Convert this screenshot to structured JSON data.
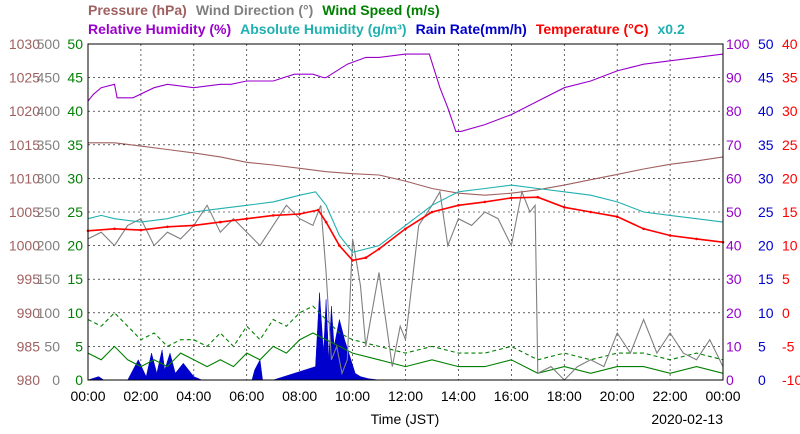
{
  "colors": {
    "pressure": "#a06060",
    "wind_direction": "#808080",
    "wind_speed": "#008000",
    "humidity": "#9900cc",
    "abs_humidity": "#20b0b0",
    "rain": "#0000cc",
    "temperature": "#ff0000",
    "grid": "#000000"
  },
  "chart_data": {
    "type": "line",
    "date": "2020-02-13",
    "xlabel": "Time (JST)",
    "xlim": [
      0,
      24
    ],
    "x_ticks": [
      "00:00",
      "02:00",
      "04:00",
      "06:00",
      "08:00",
      "10:00",
      "12:00",
      "14:00",
      "16:00",
      "18:00",
      "20:00",
      "22:00",
      "00:00"
    ],
    "grid": true,
    "legend": {
      "row1": [
        {
          "key": "pressure",
          "label": "Pressure (hPa)"
        },
        {
          "key": "wind_direction",
          "label": "Wind Direction (°)"
        },
        {
          "key": "wind_speed",
          "label": "Wind Speed (m/s)"
        }
      ],
      "row2": [
        {
          "key": "humidity",
          "label": "Relative Humidity (%)"
        },
        {
          "key": "abs_humidity",
          "label": "Absolute Humidity (g/m³)"
        },
        {
          "key": "rain",
          "label": "Rain Rate(mm/h)"
        },
        {
          "key": "temperature",
          "label": "Temperature (°C)"
        },
        {
          "key": "abs_humidity",
          "label": "x0.2"
        }
      ]
    },
    "axes": {
      "pressure": {
        "ylim": [
          980,
          1030
        ],
        "ticks": [
          "1030",
          "1025",
          "1020",
          "1015",
          "1010",
          "1005",
          "1000",
          "995",
          "990",
          "985",
          "980"
        ]
      },
      "wind_direction": {
        "ylim": [
          0,
          500
        ],
        "ticks": [
          "500",
          "450",
          "400",
          "350",
          "300",
          "250",
          "200",
          "150",
          "100",
          "50",
          "0"
        ]
      },
      "wind_speed": {
        "ylim": [
          0,
          50
        ],
        "ticks": [
          "50",
          "45",
          "40",
          "35",
          "30",
          "25",
          "20",
          "15",
          "10",
          "5",
          "0"
        ]
      },
      "humidity": {
        "ylim": [
          0,
          100
        ],
        "ticks": [
          "100",
          "90",
          "80",
          "70",
          "60",
          "50",
          "40",
          "30",
          "20",
          "10",
          "0"
        ]
      },
      "rain": {
        "ylim": [
          0,
          50
        ],
        "ticks": [
          "50",
          "45",
          "40",
          "35",
          "30",
          "25",
          "20",
          "15",
          "10",
          "5",
          "0"
        ]
      },
      "temperature": {
        "ylim": [
          -10,
          40
        ],
        "ticks": [
          "40",
          "35",
          "30",
          "25",
          "20",
          "15",
          "10",
          "5",
          "0",
          "-5",
          "-10"
        ]
      }
    },
    "series": [
      {
        "key": "pressure",
        "axis": "pressure",
        "x": [
          0,
          1,
          2,
          3,
          4,
          5,
          6,
          7,
          8,
          9,
          10,
          11,
          12,
          13,
          14,
          15,
          16,
          17,
          18,
          19,
          20,
          21,
          22,
          23,
          24
        ],
        "y": [
          1015.3,
          1015.3,
          1014.8,
          1014.3,
          1013.8,
          1013.2,
          1012.4,
          1012.0,
          1011.5,
          1011.0,
          1010.7,
          1010.5,
          1009.6,
          1008.5,
          1007.8,
          1007.5,
          1007.8,
          1008.3,
          1009.0,
          1009.8,
          1010.6,
          1011.4,
          1012.1,
          1012.6,
          1013.2
        ]
      },
      {
        "key": "humidity",
        "axis": "humidity",
        "x": [
          0,
          0.2,
          0.5,
          1,
          1.1,
          1.7,
          2.5,
          3,
          4,
          5,
          5.4,
          6,
          7,
          7.8,
          8.5,
          8.9,
          9,
          9.8,
          10.5,
          11,
          12,
          12.9,
          13.3,
          13.6,
          13.9,
          14.1,
          15,
          16,
          17,
          18,
          19,
          20,
          21,
          22,
          23,
          24
        ],
        "y": [
          83,
          85,
          87,
          88,
          84,
          84,
          87,
          88,
          87,
          88,
          88,
          89,
          89,
          91,
          91,
          90,
          90,
          94,
          96,
          96,
          97,
          97,
          87,
          81,
          74,
          74,
          76,
          79,
          83,
          87,
          89,
          92,
          94,
          95,
          96,
          97
        ]
      },
      {
        "key": "abs_humidity",
        "axis": "humidity",
        "x": [
          0,
          0.5,
          1,
          2,
          3,
          4,
          5,
          6,
          7,
          8,
          8.6,
          9,
          9.5,
          10,
          11,
          12,
          13,
          14,
          15,
          16,
          17,
          18,
          19,
          20,
          21,
          22,
          23,
          24
        ],
        "y": [
          48,
          49,
          48,
          47,
          48,
          50,
          51,
          52,
          53,
          55,
          56,
          52,
          43,
          38,
          40,
          46,
          52,
          56,
          57,
          58,
          57,
          56,
          55,
          53,
          50,
          49,
          48,
          47
        ]
      },
      {
        "key": "temperature",
        "axis": "temperature",
        "x": [
          0,
          1,
          2,
          3,
          4,
          5,
          6,
          7,
          8,
          8.7,
          9,
          9.5,
          10,
          10.5,
          11,
          12,
          13,
          14,
          15,
          16,
          17,
          18,
          19,
          20,
          21,
          22,
          23,
          24
        ],
        "y": [
          12.2,
          12.5,
          12.3,
          12.8,
          13.0,
          13.5,
          14.0,
          14.5,
          14.7,
          15.3,
          13.5,
          10.0,
          7.8,
          8.2,
          9.5,
          12.5,
          15.0,
          16.0,
          16.5,
          17.1,
          17.2,
          15.7,
          15.0,
          14.3,
          12.5,
          11.5,
          11.0,
          10.5
        ]
      },
      {
        "key": "wind_direction",
        "axis": "wind_direction",
        "x": [
          0,
          0.5,
          1,
          1.5,
          2,
          2.5,
          3,
          3.5,
          4,
          4.5,
          5,
          5.5,
          6,
          6.5,
          7,
          7.5,
          8,
          8.5,
          8.8,
          9,
          9.2,
          9.4,
          9.6,
          9.8,
          10,
          10.3,
          10.5,
          11,
          11.5,
          11.8,
          12,
          12.5,
          13,
          13.3,
          13.6,
          14,
          14.5,
          15,
          15.5,
          16,
          16.4,
          16.7,
          16.9,
          17,
          17.5,
          18,
          18.5,
          19,
          19.5,
          20,
          20.5,
          21,
          21.5,
          22,
          22.5,
          23,
          23.5,
          24
        ],
        "y": [
          210,
          220,
          200,
          230,
          240,
          200,
          220,
          210,
          230,
          260,
          220,
          240,
          220,
          200,
          230,
          260,
          240,
          230,
          260,
          160,
          30,
          50,
          10,
          30,
          210,
          140,
          50,
          160,
          20,
          80,
          60,
          230,
          260,
          280,
          200,
          240,
          230,
          250,
          240,
          200,
          280,
          250,
          260,
          10,
          20,
          0,
          20,
          30,
          20,
          70,
          40,
          90,
          40,
          70,
          40,
          30,
          60,
          20
        ]
      },
      {
        "key": "wind_speed",
        "axis": "wind_speed",
        "x": [
          0,
          0.5,
          1,
          1.5,
          2,
          2.5,
          3,
          3.5,
          4,
          4.5,
          5,
          5.5,
          6,
          6.5,
          7,
          7.5,
          8,
          8.5,
          9,
          9.5,
          10,
          11,
          12,
          13,
          14,
          15,
          16,
          17,
          18,
          19,
          20,
          21,
          22,
          23,
          24
        ],
        "y": [
          4,
          3,
          5,
          3,
          2,
          3,
          2,
          4,
          3,
          2,
          3,
          2,
          4,
          3,
          5,
          4,
          6,
          7,
          6,
          5,
          4,
          3,
          2,
          3,
          2,
          2,
          3,
          1,
          2,
          1,
          2,
          2,
          1,
          2,
          1
        ]
      },
      {
        "key": "wind_speed",
        "axis": "wind_speed",
        "name": "gust",
        "x": [
          0,
          0.5,
          1,
          1.5,
          2,
          2.5,
          3,
          3.5,
          4,
          4.5,
          5,
          5.5,
          6,
          6.5,
          7,
          7.5,
          8,
          8.5,
          9,
          9.5,
          10,
          11,
          12,
          13,
          14,
          15,
          16,
          17,
          18,
          19,
          20,
          21,
          22,
          23,
          24
        ],
        "y": [
          9,
          8,
          10,
          8,
          6,
          7,
          5,
          6,
          6,
          5,
          7,
          5,
          8,
          6,
          9,
          8,
          10,
          11,
          9,
          7,
          6,
          5,
          4,
          5,
          4,
          4,
          5,
          3,
          4,
          3,
          4,
          4,
          3,
          4,
          3
        ]
      },
      {
        "key": "rain",
        "axis": "rain",
        "type": "area",
        "x": [
          0,
          0.4,
          0.6,
          1.5,
          1.9,
          2.2,
          2.4,
          2.6,
          2.8,
          2.9,
          3.1,
          3.3,
          3.6,
          4.0,
          4.3,
          5.0,
          6.2,
          6.3,
          6.5,
          6.6,
          7.0,
          8.6,
          8.75,
          8.9,
          9.0,
          9.1,
          9.2,
          9.3,
          9.5,
          9.7,
          9.9,
          10.1,
          10.3,
          10.6,
          11.0,
          24
        ],
        "y": [
          0,
          0.5,
          0,
          0,
          3,
          0.5,
          4,
          1,
          4.5,
          1.5,
          4,
          1,
          2.5,
          0.5,
          0,
          0,
          0,
          1.5,
          3,
          0,
          0,
          2,
          13,
          4,
          12,
          3,
          11,
          5,
          9,
          6,
          3.5,
          1,
          0.5,
          0.2,
          0,
          0
        ]
      }
    ]
  }
}
